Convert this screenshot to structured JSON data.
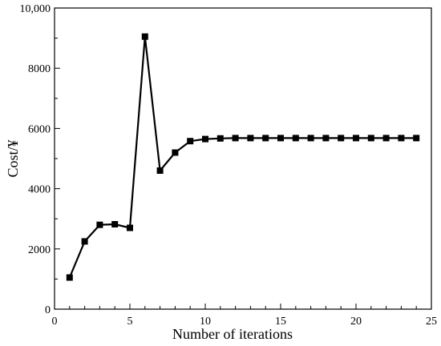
{
  "chart_data": {
    "type": "line",
    "title": "",
    "xlabel": "Number of iterations",
    "ylabel": "Cost/¥",
    "xlim": [
      0,
      25
    ],
    "ylim": [
      0,
      10000
    ],
    "x_ticks": [
      0,
      5,
      10,
      15,
      20,
      25
    ],
    "x_tick_labels": [
      "0",
      "5",
      "10",
      "15",
      "20",
      "25"
    ],
    "x_minor_ticks": [
      1,
      2,
      3,
      4,
      6,
      7,
      8,
      9,
      11,
      12,
      13,
      14,
      16,
      17,
      18,
      19,
      21,
      22,
      23,
      24
    ],
    "y_ticks": [
      0,
      2000,
      4000,
      6000,
      8000,
      10000
    ],
    "y_tick_labels": [
      "0",
      "2000",
      "4000",
      "6000",
      "8000",
      "10,000"
    ],
    "y_minor_ticks": [
      1000,
      3000,
      5000,
      7000,
      9000
    ],
    "grid": false,
    "marker": "square",
    "line_color": "#000000",
    "series": [
      {
        "x": [
          1,
          2,
          3,
          4,
          5,
          6,
          7,
          8,
          9,
          10,
          11,
          12,
          13,
          14,
          15,
          16,
          17,
          18,
          19,
          20,
          21,
          22,
          23,
          24
        ],
        "values": [
          1050,
          2250,
          2800,
          2820,
          2700,
          9050,
          4600,
          5200,
          5580,
          5650,
          5670,
          5680,
          5680,
          5680,
          5680,
          5680,
          5680,
          5680,
          5680,
          5680,
          5680,
          5680,
          5680,
          5680
        ]
      }
    ]
  }
}
